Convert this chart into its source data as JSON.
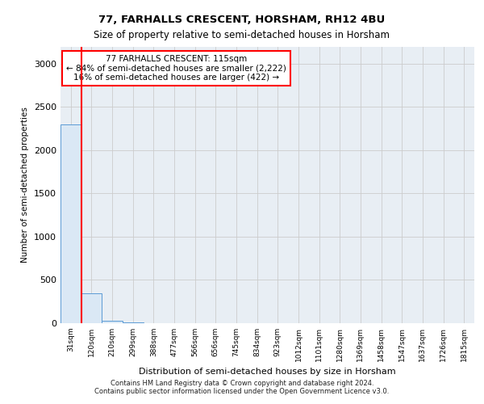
{
  "title": "77, FARHALLS CRESCENT, HORSHAM, RH12 4BU",
  "subtitle": "Size of property relative to semi-detached houses in Horsham",
  "xlabel": "Distribution of semi-detached houses by size in Horsham",
  "ylabel": "Number of semi-detached properties",
  "footer_line1": "Contains HM Land Registry data © Crown copyright and database right 2024.",
  "footer_line2": "Contains public sector information licensed under the Open Government Licence v3.0.",
  "bar_labels": [
    "31sqm",
    "120sqm",
    "210sqm",
    "299sqm",
    "388sqm",
    "477sqm",
    "566sqm",
    "656sqm",
    "745sqm",
    "834sqm",
    "923sqm",
    "1012sqm",
    "1101sqm",
    "1280sqm",
    "1369sqm",
    "1458sqm",
    "1547sqm",
    "1637sqm",
    "1726sqm",
    "1815sqm"
  ],
  "bar_values": [
    2300,
    350,
    30,
    5,
    2,
    1,
    1,
    1,
    1,
    1,
    0,
    0,
    0,
    0,
    0,
    0,
    0,
    0,
    0,
    0
  ],
  "bar_color": "#dae8f5",
  "bar_edge_color": "#5b9bd5",
  "annotation_text": "77 FARHALLS CRESCENT: 115sqm\n← 84% of semi-detached houses are smaller (2,222)\n16% of semi-detached houses are larger (422) →",
  "vline_color": "red",
  "ylim": [
    0,
    3200
  ],
  "yticks": [
    0,
    500,
    1000,
    1500,
    2000,
    2500,
    3000
  ],
  "grid_color": "#cccccc",
  "bg_color": "#ffffff",
  "plot_bg_color": "#e8eef4"
}
